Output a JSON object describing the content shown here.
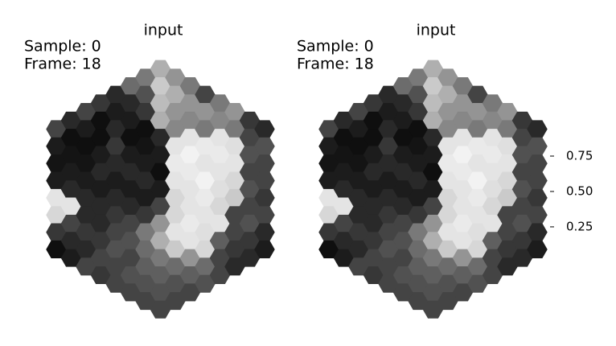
{
  "chart_data": [
    {
      "type": "hexmap",
      "title": "input",
      "annotations": [
        "Sample: 0",
        "Frame: 18"
      ],
      "clim": [
        0.045,
        1.0
      ],
      "columns": [
        [
          0.3,
          0.15,
          0.12,
          0.15,
          0.9,
          0.85,
          0.25,
          0.1
        ],
        [
          0.2,
          0.1,
          0.12,
          0.15,
          0.2,
          0.9,
          0.3,
          0.2,
          0.15
        ],
        [
          0.3,
          0.15,
          0.1,
          0.12,
          0.15,
          0.2,
          0.2,
          0.25,
          0.2,
          0.3
        ],
        [
          0.25,
          0.1,
          0.1,
          0.15,
          0.2,
          0.15,
          0.2,
          0.2,
          0.25,
          0.3,
          0.25
        ],
        [
          0.2,
          0.15,
          0.2,
          0.25,
          0.2,
          0.15,
          0.2,
          0.25,
          0.3,
          0.35,
          0.3,
          0.3
        ],
        [
          0.45,
          0.2,
          0.15,
          0.1,
          0.15,
          0.2,
          0.15,
          0.2,
          0.3,
          0.35,
          0.3,
          0.35,
          0.3
        ],
        [
          0.5,
          0.35,
          0.25,
          0.1,
          0.12,
          0.15,
          0.2,
          0.15,
          0.25,
          0.5,
          0.45,
          0.4,
          0.35,
          0.3
        ],
        [
          0.7,
          0.8,
          0.75,
          0.7,
          0.2,
          0.15,
          0.1,
          0.15,
          0.3,
          0.6,
          0.7,
          0.5,
          0.4,
          0.35,
          0.3
        ],
        [
          0.6,
          0.7,
          0.6,
          0.55,
          0.9,
          0.92,
          0.9,
          0.85,
          0.85,
          0.9,
          0.8,
          0.45,
          0.35,
          0.3
        ],
        [
          0.5,
          0.6,
          0.55,
          0.9,
          0.95,
          0.92,
          0.9,
          0.9,
          0.92,
          0.9,
          0.6,
          0.4,
          0.3
        ],
        [
          0.3,
          0.6,
          0.5,
          0.92,
          0.9,
          0.95,
          0.92,
          0.9,
          0.88,
          0.85,
          0.45,
          0.35
        ],
        [
          0.5,
          0.55,
          0.9,
          0.92,
          0.9,
          0.88,
          0.85,
          0.9,
          0.4,
          0.3,
          0.3
        ],
        [
          0.6,
          0.5,
          0.88,
          0.9,
          0.85,
          0.8,
          0.3,
          0.3,
          0.25,
          0.2
        ],
        [
          0.25,
          0.3,
          0.35,
          0.3,
          0.35,
          0.3,
          0.35,
          0.25,
          0.2
        ],
        [
          0.2,
          0.35,
          0.3,
          0.3,
          0.25,
          0.3,
          0.2,
          0.15
        ]
      ]
    },
    {
      "type": "hexmap",
      "title": "input",
      "annotations": [
        "Sample: 0",
        "Frame: 18"
      ],
      "clim": [
        0.045,
        1.0
      ],
      "cticks": [
        0.25,
        {
          "value": 0.5,
          "label": "0.50"
        },
        0.75
      ],
      "columns": [
        [
          0.3,
          0.15,
          0.12,
          0.15,
          0.9,
          0.85,
          0.25,
          0.1
        ],
        [
          0.2,
          0.1,
          0.12,
          0.15,
          0.2,
          0.9,
          0.3,
          0.2,
          0.15
        ],
        [
          0.3,
          0.15,
          0.1,
          0.12,
          0.15,
          0.2,
          0.2,
          0.25,
          0.2,
          0.3
        ],
        [
          0.25,
          0.1,
          0.1,
          0.15,
          0.2,
          0.15,
          0.2,
          0.2,
          0.25,
          0.3,
          0.25
        ],
        [
          0.2,
          0.15,
          0.2,
          0.25,
          0.2,
          0.15,
          0.2,
          0.25,
          0.3,
          0.35,
          0.3,
          0.3
        ],
        [
          0.45,
          0.2,
          0.15,
          0.1,
          0.15,
          0.2,
          0.15,
          0.2,
          0.3,
          0.35,
          0.3,
          0.35,
          0.3
        ],
        [
          0.5,
          0.35,
          0.25,
          0.1,
          0.12,
          0.15,
          0.2,
          0.15,
          0.25,
          0.5,
          0.45,
          0.4,
          0.35,
          0.3
        ],
        [
          0.7,
          0.8,
          0.75,
          0.7,
          0.2,
          0.15,
          0.1,
          0.15,
          0.3,
          0.6,
          0.7,
          0.5,
          0.4,
          0.35,
          0.3
        ],
        [
          0.6,
          0.7,
          0.6,
          0.55,
          0.9,
          0.92,
          0.9,
          0.85,
          0.85,
          0.9,
          0.8,
          0.45,
          0.35,
          0.3
        ],
        [
          0.5,
          0.6,
          0.55,
          0.9,
          0.95,
          0.92,
          0.9,
          0.9,
          0.92,
          0.9,
          0.6,
          0.4,
          0.3
        ],
        [
          0.3,
          0.6,
          0.5,
          0.92,
          0.9,
          0.95,
          0.92,
          0.9,
          0.88,
          0.85,
          0.45,
          0.35
        ],
        [
          0.5,
          0.55,
          0.9,
          0.92,
          0.9,
          0.88,
          0.85,
          0.9,
          0.4,
          0.3,
          0.3
        ],
        [
          0.6,
          0.5,
          0.88,
          0.9,
          0.85,
          0.8,
          0.3,
          0.3,
          0.25,
          0.2
        ],
        [
          0.25,
          0.3,
          0.35,
          0.3,
          0.35,
          0.3,
          0.35,
          0.25,
          0.2
        ],
        [
          0.2,
          0.35,
          0.3,
          0.3,
          0.25,
          0.3,
          0.2,
          0.15
        ]
      ]
    }
  ]
}
